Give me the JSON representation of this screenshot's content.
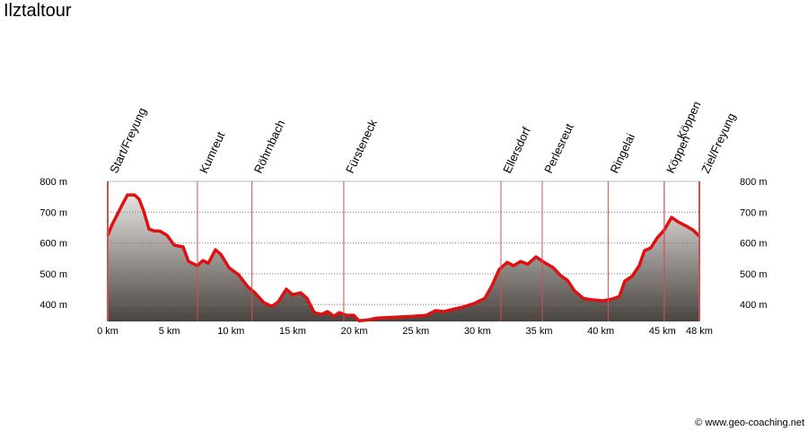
{
  "chart_data": {
    "type": "area",
    "title": "Ilztaltour",
    "copyright": "© www.geo-coaching.net",
    "x": [
      0,
      0.36,
      0.73,
      1.17,
      1.6,
      2.18,
      2.55,
      2.91,
      3.35,
      3.79,
      4.22,
      4.81,
      5.39,
      6.12,
      6.55,
      7.28,
      7.72,
      8.16,
      8.74,
      9.18,
      9.83,
      10.63,
      11.36,
      11.94,
      12.67,
      13.33,
      13.84,
      14.49,
      15.0,
      15.66,
      16.17,
      16.75,
      17.33,
      17.84,
      18.35,
      18.79,
      19.37,
      19.96,
      20.39,
      21.12,
      21.85,
      23.31,
      24.76,
      25.86,
      26.58,
      27.31,
      28.04,
      28.77,
      29.72,
      30.59,
      31.17,
      31.76,
      32.41,
      32.92,
      33.5,
      34.08,
      34.74,
      35.4,
      36.13,
      36.78,
      37.29,
      37.88,
      38.6,
      39.33,
      40.2,
      40.93,
      41.51,
      41.95,
      42.53,
      43.12,
      43.55,
      44.06,
      44.57,
      45.15,
      45.74,
      46.25,
      46.98,
      47.49,
      48.0
    ],
    "values": [
      625,
      660,
      689,
      724,
      756,
      756,
      742,
      704,
      645,
      639,
      639,
      625,
      593,
      587,
      540,
      526,
      543,
      534,
      578,
      563,
      520,
      496,
      458,
      438,
      406,
      394,
      409,
      450,
      432,
      438,
      420,
      374,
      368,
      377,
      362,
      374,
      365,
      365,
      347,
      350,
      356,
      359,
      362,
      365,
      380,
      377,
      385,
      391,
      403,
      420,
      461,
      514,
      537,
      526,
      540,
      531,
      555,
      537,
      520,
      493,
      479,
      444,
      420,
      415,
      412,
      418,
      426,
      476,
      491,
      526,
      575,
      584,
      616,
      642,
      683,
      669,
      654,
      642,
      622
    ],
    "line_color": "#e01010",
    "xlim": [
      0,
      48
    ],
    "ylim": [
      345,
      800
    ],
    "xticks": [
      {
        "value": 0,
        "label": "0 km"
      },
      {
        "value": 5,
        "label": "5 km"
      },
      {
        "value": 10,
        "label": "10 km"
      },
      {
        "value": 15,
        "label": "15 km"
      },
      {
        "value": 20,
        "label": "20 km"
      },
      {
        "value": 25,
        "label": "25 km"
      },
      {
        "value": 30,
        "label": "30 km"
      },
      {
        "value": 35,
        "label": "35 km"
      },
      {
        "value": 40,
        "label": "40 km"
      },
      {
        "value": 45,
        "label": "45 km"
      },
      {
        "value": 48,
        "label": "48 km"
      }
    ],
    "yticks": [
      {
        "value": 400,
        "label": "400 m"
      },
      {
        "value": 500,
        "label": "500 m"
      },
      {
        "value": 600,
        "label": "600 m"
      },
      {
        "value": 700,
        "label": "700 m"
      },
      {
        "value": 800,
        "label": "800 m"
      }
    ],
    "grid": true,
    "waypoints": [
      {
        "name": "Start/Freyung",
        "km": 0
      },
      {
        "name": "Kumreut",
        "km": 7.28
      },
      {
        "name": "Röhrnbach",
        "km": 11.7
      },
      {
        "name": "Fürsteneck",
        "km": 19.15
      },
      {
        "name": "Ellersdorf",
        "km": 31.9
      },
      {
        "name": "Perlesreut",
        "km": 35.25
      },
      {
        "name": "Ringelai",
        "km": 40.6
      },
      {
        "name": "Köppen",
        "km": 45.15
      },
      {
        "name": "Köppen",
        "km": 45.15
      },
      {
        "name": "Ziel/Freyung",
        "km": 48
      }
    ]
  }
}
